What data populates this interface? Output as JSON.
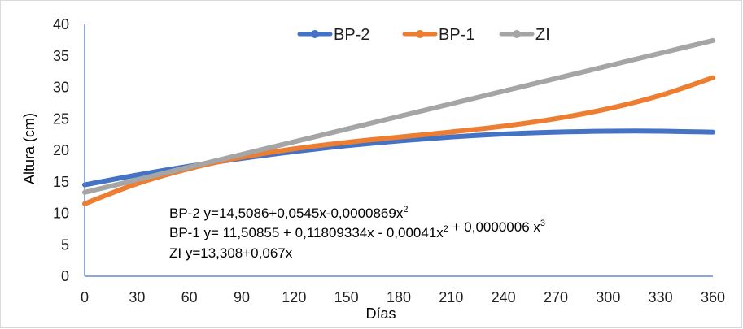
{
  "chart_data": {
    "type": "line",
    "title": "",
    "xlabel": "Días",
    "ylabel": "Altura (cm)",
    "xlim": [
      0,
      360
    ],
    "ylim": [
      0,
      40
    ],
    "x_ticks": [
      0,
      30,
      60,
      90,
      120,
      150,
      180,
      210,
      240,
      270,
      300,
      330,
      360
    ],
    "y_ticks": [
      0,
      5,
      10,
      15,
      20,
      25,
      30,
      35,
      40
    ],
    "grid": false,
    "legend_position": "top",
    "x": [
      0,
      30,
      60,
      90,
      120,
      150,
      180,
      210,
      240,
      270,
      300,
      330,
      360
    ],
    "series": [
      {
        "name": "BP-2",
        "color": "#4472C4",
        "values": [
          14.51,
          16.07,
          17.47,
          18.7,
          19.79,
          20.72,
          21.49,
          22.11,
          22.58,
          22.89,
          23.04,
          23.04,
          22.88
        ]
      },
      {
        "name": "BP-1",
        "color": "#ED7D31",
        "values": [
          11.51,
          14.69,
          17.09,
          18.89,
          20.23,
          21.25,
          22.09,
          22.91,
          23.83,
          25.02,
          26.6,
          28.72,
          31.53
        ]
      },
      {
        "name": "ZI",
        "color": "#A5A5A5",
        "values": [
          13.31,
          15.32,
          17.33,
          19.34,
          21.35,
          23.36,
          25.37,
          27.38,
          29.39,
          31.4,
          33.41,
          35.42,
          37.43
        ]
      }
    ],
    "annotations": [
      {
        "parts": [
          {
            "t": "BP-2 y=14,5086+0,0545x-0,0000869x"
          },
          {
            "t": "2",
            "sup": true
          }
        ]
      },
      {
        "parts": [
          {
            "t": "BP-1 y= 11,50855 + 0,11809334x - 0,00041x"
          },
          {
            "t": "2",
            "sup": true
          },
          {
            "t": " + 0,0000006 x"
          },
          {
            "t": "3",
            "sup": true
          }
        ]
      },
      {
        "parts": [
          {
            "t": "ZI y=13,308+0,067x"
          }
        ]
      }
    ]
  }
}
